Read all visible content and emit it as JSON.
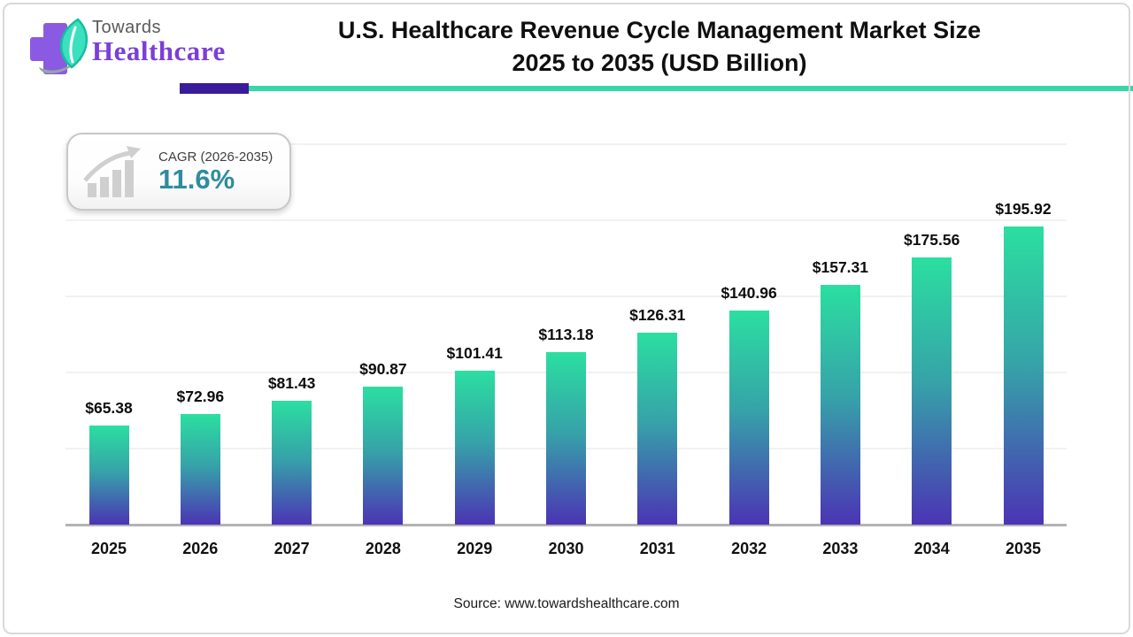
{
  "logo": {
    "towards": "Towards",
    "healthcare": "Healthcare"
  },
  "header": {
    "title_line1": "U.S. Healthcare Revenue Cycle Management Market Size",
    "title_line2": "2025 to 2035 (USD Billion)"
  },
  "cagr_badge": {
    "label": "CAGR (2026-2035)",
    "value": "11.6%"
  },
  "chart_data": {
    "type": "bar",
    "title": "U.S. Healthcare Revenue Cycle Management Market Size 2025 to 2035 (USD Billion)",
    "categories": [
      "2025",
      "2026",
      "2027",
      "2028",
      "2029",
      "2030",
      "2031",
      "2032",
      "2033",
      "2034",
      "2035"
    ],
    "values": [
      65.38,
      72.96,
      81.43,
      90.87,
      101.41,
      113.18,
      126.31,
      140.96,
      157.31,
      175.56,
      195.92
    ],
    "value_labels": [
      "$65.38",
      "$72.96",
      "$81.43",
      "$90.87",
      "$101.41",
      "$113.18",
      "$126.31",
      "$140.96",
      "$157.31",
      "$175.56",
      "$195.92"
    ],
    "xlabel": "",
    "ylabel": "USD Billion",
    "ylim": [
      0,
      250
    ],
    "gridline_step": 50,
    "grid": "horizontal-faint",
    "legend": "none",
    "bar_gradient_top": "#2bdfa0",
    "bar_gradient_mid": "#36a2a9",
    "bar_gradient_bottom": "#4b34b4"
  },
  "footer": {
    "source": "Source: www.towardshealthcare.com"
  },
  "colors": {
    "accent_purple_bar": "#3a1b9b",
    "accent_teal_line": "#36d7a8",
    "cagr_value_teal": "#2e8c9e",
    "logo_purple": "#7a3fd8",
    "logo_cross_purple": "#8a5be2",
    "logo_leaf_mint": "#3be1be",
    "axis_gray": "#b3b3b3",
    "gridline_gray": "#f1f1f1",
    "title_black": "#0f0f0f"
  }
}
